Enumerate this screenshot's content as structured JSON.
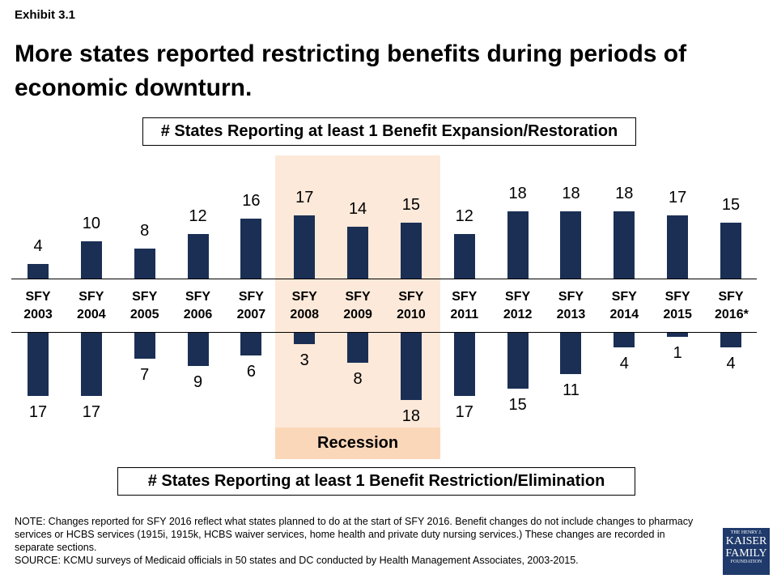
{
  "exhibit": "Exhibit 3.1",
  "chart_data": {
    "type": "diverging-bar",
    "title": "More states reported restricting benefits during periods of economic downturn.",
    "categories": [
      "SFY 2003",
      "SFY 2004",
      "SFY 2005",
      "SFY 2006",
      "SFY 2007",
      "SFY 2008",
      "SFY 2009",
      "SFY 2010",
      "SFY 2011",
      "SFY 2012",
      "SFY 2013",
      "SFY 2014",
      "SFY 2015",
      "SFY 2016*"
    ],
    "series": [
      {
        "name": "# States Reporting at least 1 Benefit Expansion/Restoration",
        "color": "#1b2f55",
        "direction": "up",
        "values": [
          4,
          10,
          8,
          12,
          16,
          17,
          14,
          15,
          12,
          18,
          18,
          18,
          17,
          15
        ]
      },
      {
        "name": "# States Reporting at least 1 Benefit Restriction/Elimination",
        "color": "#1b2f55",
        "direction": "down",
        "values": [
          17,
          17,
          7,
          9,
          6,
          3,
          8,
          18,
          17,
          15,
          11,
          4,
          1,
          4
        ]
      }
    ],
    "highlight": {
      "label": "Recession",
      "from": "SFY 2008",
      "to": "SFY 2010",
      "color": "#fde9d9",
      "label_color": "#fbd7b9"
    }
  },
  "note": "NOTE: Changes reported for SFY 2016 reflect what states planned to do at the start of SFY 2016. Benefit changes do not include changes to pharmacy services or HCBS services (1915i, 1915k, HCBS waiver services, home health and private duty nursing services.) These changes are recorded in separate sections.",
  "source": "SOURCE: KCMU surveys of Medicaid officials in 50 states and DC conducted by Health Management Associates, 2003-2015.",
  "logo": [
    "THE HENRY J.",
    "KAISER",
    "FAMILY",
    "FOUNDATION"
  ]
}
